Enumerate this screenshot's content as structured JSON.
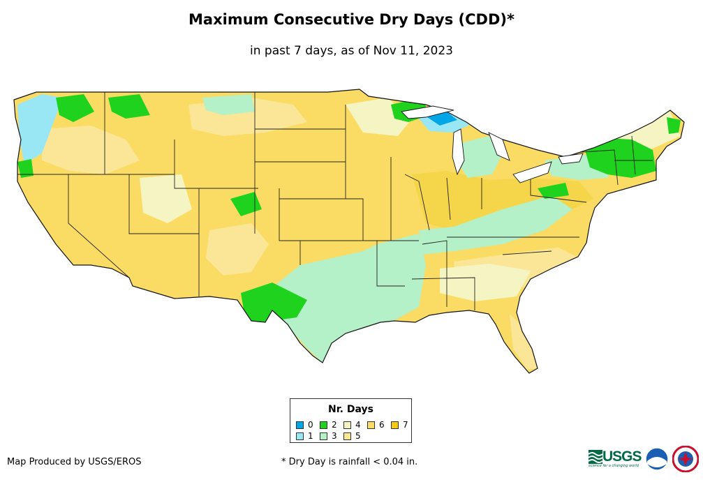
{
  "title": "Maximum Consecutive Dry Days (CDD)*",
  "subtitle": "in past 7 days, as of Nov 11, 2023",
  "legend": {
    "title": "Nr. Days",
    "items": [
      {
        "label": "0",
        "color": "#00a6e6"
      },
      {
        "label": "1",
        "color": "#99e6f5"
      },
      {
        "label": "2",
        "color": "#1ed21e"
      },
      {
        "label": "3",
        "color": "#b4f0c8"
      },
      {
        "label": "4",
        "color": "#f5f5c3"
      },
      {
        "label": "5",
        "color": "#fae696"
      },
      {
        "label": "6",
        "color": "#fadc64"
      },
      {
        "label": "7",
        "color": "#f5c814"
      }
    ]
  },
  "credit": "Map Produced by USGS/EROS",
  "footnote": "* Dry Day is rainfall < 0.04 in.",
  "logos": {
    "usgs": {
      "text": "USGS",
      "tagline": "science for a changing world",
      "color": "#006a44"
    },
    "noaa": {
      "text": "noaa"
    },
    "nws": {
      "text": "NWS"
    }
  },
  "map": {
    "region": "Contiguous United States",
    "background_color": "#fadc64"
  }
}
